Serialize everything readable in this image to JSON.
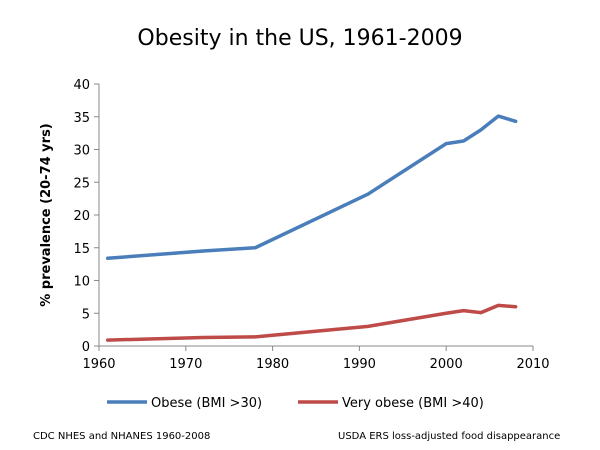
{
  "chart_data": {
    "type": "line",
    "title": "Obesity in the US, 1961-2009",
    "xlabel": "",
    "ylabel": "% prevalence (20-74 yrs)",
    "xlim": [
      1960,
      2010
    ],
    "ylim": [
      0,
      40
    ],
    "xticks": [
      1960,
      1970,
      1980,
      1990,
      2000,
      2010
    ],
    "yticks": [
      0,
      5,
      10,
      15,
      20,
      25,
      30,
      35,
      40
    ],
    "grid": false,
    "legend_position": "bottom",
    "series": [
      {
        "name": "Obese (BMI >30)",
        "color": "#4a7ebb",
        "x": [
          1961,
          1972,
          1978,
          1991,
          2000,
          2002,
          2004,
          2006,
          2008
        ],
        "y": [
          13.4,
          14.5,
          15.0,
          23.2,
          30.9,
          31.3,
          33.0,
          35.1,
          34.3
        ]
      },
      {
        "name": "Very obese (BMI >40)",
        "color": "#be4b48",
        "x": [
          1961,
          1972,
          1978,
          1991,
          2000,
          2002,
          2004,
          2006,
          2008
        ],
        "y": [
          0.9,
          1.3,
          1.4,
          3.0,
          5.0,
          5.4,
          5.1,
          6.2,
          6.0
        ]
      }
    ]
  },
  "footer": {
    "left": "CDC NHES and NHANES 1960-2008",
    "right": "USDA ERS loss-adjusted  food disappearance"
  }
}
